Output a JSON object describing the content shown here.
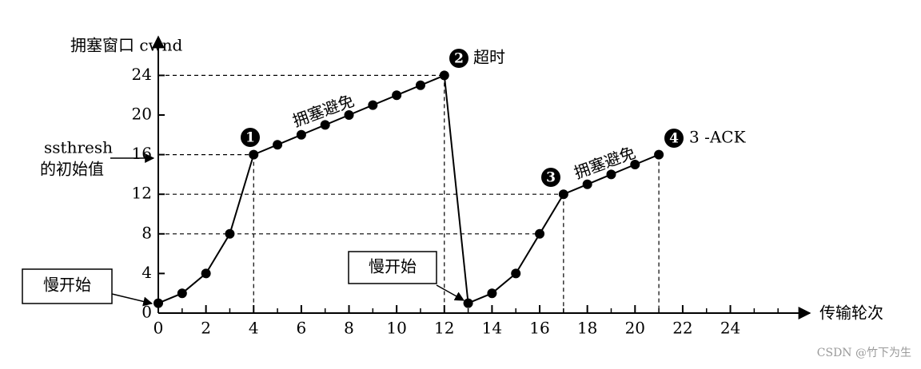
{
  "chart_data": {
    "type": "line",
    "y_axis_title": "拥塞窗口 cwnd",
    "x_axis_title": "传输轮次",
    "x": [
      0,
      1,
      2,
      3,
      4,
      5,
      6,
      7,
      8,
      9,
      10,
      11,
      12,
      13,
      14,
      15,
      16,
      17,
      18,
      19,
      20,
      21
    ],
    "series": [
      {
        "color": "#000000",
        "values": [
          1,
          2,
          4,
          8,
          16,
          17,
          18,
          19,
          20,
          21,
          22,
          23,
          24,
          1,
          2,
          4,
          8,
          12,
          13,
          14,
          15,
          16
        ]
      }
    ],
    "xlim": [
      0,
      27
    ],
    "ylim": [
      0,
      27.5
    ],
    "xticks": [
      0,
      2,
      4,
      6,
      8,
      10,
      12,
      14,
      16,
      18,
      20,
      22,
      24
    ],
    "yticks": [
      0,
      4,
      8,
      12,
      16,
      20,
      24
    ],
    "markers": [
      "1",
      "2",
      "3",
      "4"
    ],
    "annotations": [
      "拥塞避免",
      "超时",
      "拥塞避免",
      "3 -ACK",
      "慢开始",
      "慢开始",
      "ssthresh",
      "的初始值"
    ],
    "watermark": "CSDN @竹下为生"
  }
}
